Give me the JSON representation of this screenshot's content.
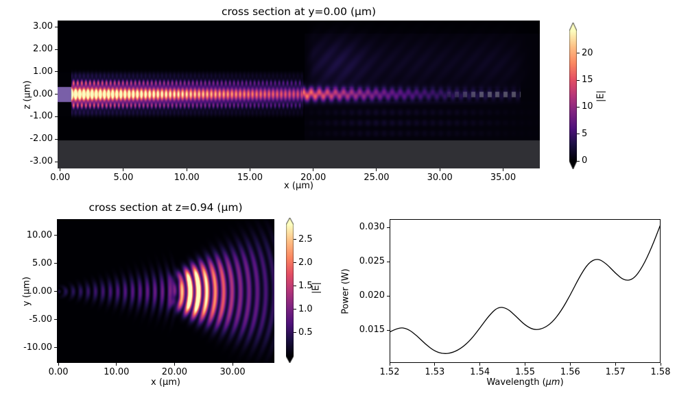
{
  "figure": {
    "background": "#ffffff"
  },
  "colors": {
    "text": "#000000",
    "line": "#000000",
    "substrate_gray": "#39393e",
    "source_violet": "#8266b4",
    "structure_gray": "#96969e",
    "magma_anchors": [
      [
        0.0,
        [
          0,
          0,
          4
        ]
      ],
      [
        0.13,
        [
          28,
          16,
          68
        ]
      ],
      [
        0.25,
        [
          79,
          18,
          123
        ]
      ],
      [
        0.38,
        [
          129,
          37,
          129
        ]
      ],
      [
        0.5,
        [
          181,
          54,
          122
        ]
      ],
      [
        0.63,
        [
          229,
          80,
          100
        ]
      ],
      [
        0.75,
        [
          251,
          135,
          97
        ]
      ],
      [
        0.88,
        [
          254,
          194,
          135
        ]
      ],
      [
        1.0,
        [
          252,
          253,
          191
        ]
      ]
    ]
  },
  "chart_data": [
    {
      "id": "xz",
      "type": "heatmap",
      "title": "cross section at y=0.00 (μm)",
      "xlabel": "x (μm)",
      "ylabel": "z (μm)",
      "xlim": [
        -0.2,
        37.9
      ],
      "ylim": [
        -3.3,
        3.28
      ],
      "xticks": [
        0,
        5,
        10,
        15,
        20,
        25,
        30,
        35
      ],
      "xtick_labels": [
        "0.00",
        "5.00",
        "10.00",
        "15.00",
        "20.00",
        "25.00",
        "30.00",
        "35.00"
      ],
      "yticks": [
        3,
        2,
        1,
        0,
        -1,
        -2,
        -3
      ],
      "ytick_labels": [
        "3.00",
        "2.00",
        "1.00",
        "0.00",
        "-1.00",
        "-2.00",
        "-3.00"
      ],
      "colorbar": {
        "label": "|E|",
        "vmin": 0,
        "vmax": 24.2,
        "ticks": [
          0,
          5,
          10,
          15,
          20
        ],
        "tick_labels": [
          "0",
          "5",
          "10",
          "15",
          "20"
        ],
        "extend": "both",
        "colormap": "magma"
      },
      "description": "Side view |E| field of a waveguide: violet source stub at x<0.9, bright guided beam along z=0 decaying from x=0.9 to 19, periodic grating scattering region x=19-36 with upward/downward radiated haze, translucent gray substrate below z=-2.05, gray grating teeth visible near x=35-36.3.",
      "model": {
        "vmax": 24.2,
        "source": {
          "x_end": 0.88,
          "z_half": 0.34,
          "color": [
            130,
            102,
            180
          ],
          "opacity": 0.93
        },
        "beam": {
          "x_start": 0.88,
          "x_end": 19.2,
          "amp": 40,
          "decay": 0.055,
          "period": 0.325,
          "z_sigma": 0.295
        },
        "grating": {
          "x_start": 19.2,
          "x_end": 36.4,
          "amp": 14.6,
          "decay": 0.13,
          "period": 0.64,
          "z_sigma": 0.21,
          "z_offset": 0.1
        },
        "substrate": {
          "z_top": -2.06,
          "color": [
            57,
            57,
            62
          ],
          "opacity": 0.84
        },
        "structure_color": [
          150,
          150,
          158
        ]
      }
    },
    {
      "id": "xy",
      "type": "heatmap",
      "title": "cross section at z=0.94 (μm)",
      "xlabel": "x (μm)",
      "ylabel": "y (μm)",
      "xlim": [
        -0.25,
        37.2
      ],
      "ylim": [
        -12.7,
        12.9
      ],
      "xticks": [
        0,
        10,
        20,
        30
      ],
      "xtick_labels": [
        "0.00",
        "10.00",
        "20.00",
        "30.00"
      ],
      "yticks": [
        10,
        5,
        0,
        -5,
        -10
      ],
      "ytick_labels": [
        "10.00",
        "5.00",
        "0.00",
        "-5.00",
        "-10.00"
      ],
      "colorbar": {
        "label": "|E|",
        "vmin": 0,
        "vmax": 2.82,
        "ticks": [
          0.5,
          1.0,
          1.5,
          2.0,
          2.5
        ],
        "tick_labels": [
          "0.5",
          "1.0",
          "1.5",
          "2.0",
          "2.5"
        ],
        "extend": "both",
        "colormap": "magma"
      },
      "description": "Top view |E| field above the grating: faint rippled mode line along y=0 for x<19, bright saturated wedge-shaped radiation blob at x=19-27, fan of concentric arcs expanding toward the right edge.",
      "model": {
        "vmax": 2.82,
        "ripple": {
          "period": 1.28,
          "x_end": 20.5
        },
        "fan": {
          "center_x": 14,
          "arc_period": 1.45,
          "y_scale": 0.92,
          "angle_width": 0.42
        }
      }
    },
    {
      "id": "spectrum",
      "type": "line",
      "title": "",
      "xlabel": "Wavelength (μm)",
      "xlabel_prefix": "Wavelength (",
      "xlabel_italic": "μm",
      "xlabel_suffix": ")",
      "ylabel": "Power (W)",
      "xlim": [
        1.52,
        1.58
      ],
      "ylim": [
        0.0102,
        0.0312
      ],
      "xticks": [
        1.52,
        1.53,
        1.54,
        1.55,
        1.56,
        1.57,
        1.58
      ],
      "xtick_labels": [
        "1.52",
        "1.53",
        "1.54",
        "1.55",
        "1.56",
        "1.57",
        "1.58"
      ],
      "yticks": [
        0.015,
        0.02,
        0.025,
        0.03
      ],
      "ytick_labels": [
        "0.015",
        "0.020",
        "0.025",
        "0.030"
      ],
      "line_color": "#000000",
      "x": [
        1.52,
        1.522,
        1.524,
        1.526,
        1.528,
        1.53,
        1.532,
        1.534,
        1.536,
        1.538,
        1.54,
        1.542,
        1.544,
        1.546,
        1.548,
        1.55,
        1.552,
        1.554,
        1.556,
        1.558,
        1.56,
        1.562,
        1.564,
        1.566,
        1.568,
        1.57,
        1.572,
        1.574,
        1.576,
        1.578,
        1.58
      ],
      "y": [
        0.0147,
        0.0154,
        0.0152,
        0.0142,
        0.0129,
        0.0119,
        0.0115,
        0.0117,
        0.0124,
        0.0136,
        0.0153,
        0.0171,
        0.0184,
        0.0182,
        0.017,
        0.0157,
        0.015,
        0.0152,
        0.0161,
        0.0178,
        0.0201,
        0.0227,
        0.0248,
        0.0255,
        0.0247,
        0.0233,
        0.0222,
        0.0224,
        0.0242,
        0.027,
        0.0304
      ]
    }
  ]
}
